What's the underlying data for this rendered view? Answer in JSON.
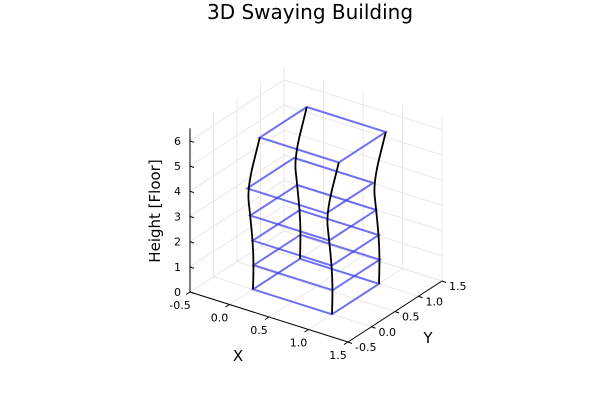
{
  "chart_data": {
    "type": "3d-wireframe",
    "title": "3D Swaying Building",
    "xlabel": "X",
    "ylabel": "Y",
    "zlabel": "Height [Floor]",
    "xlim": [
      -0.5,
      1.5
    ],
    "ylim": [
      -0.5,
      1.5
    ],
    "zlim": [
      0,
      6.5
    ],
    "xticks": [
      "-0.5",
      "0.0",
      "0.5",
      "1.0",
      "1.5"
    ],
    "yticks": [
      "-0.5",
      "0.0",
      "0.5",
      "1.0",
      "1.5"
    ],
    "zticks": [
      "0",
      "1",
      "2",
      "3",
      "4",
      "5",
      "6"
    ],
    "grid": true,
    "floor_color": "#3a3af0",
    "column_color": "#000000",
    "floors": [
      {
        "level": 0,
        "dx": 0.0,
        "dy": 0.0
      },
      {
        "level": 1,
        "dx": 0.02,
        "dy": -0.02
      },
      {
        "level": 2,
        "dx": 0.02,
        "dy": -0.04
      },
      {
        "level": 3,
        "dx": 0.0,
        "dy": -0.06
      },
      {
        "level": 4,
        "dx": -0.05,
        "dy": -0.04
      },
      {
        "level": 6,
        "dx": 0.05,
        "dy": 0.06
      }
    ],
    "columns": [
      [
        0,
        0
      ],
      [
        1,
        0
      ],
      [
        1,
        1
      ],
      [
        0,
        1
      ]
    ]
  }
}
